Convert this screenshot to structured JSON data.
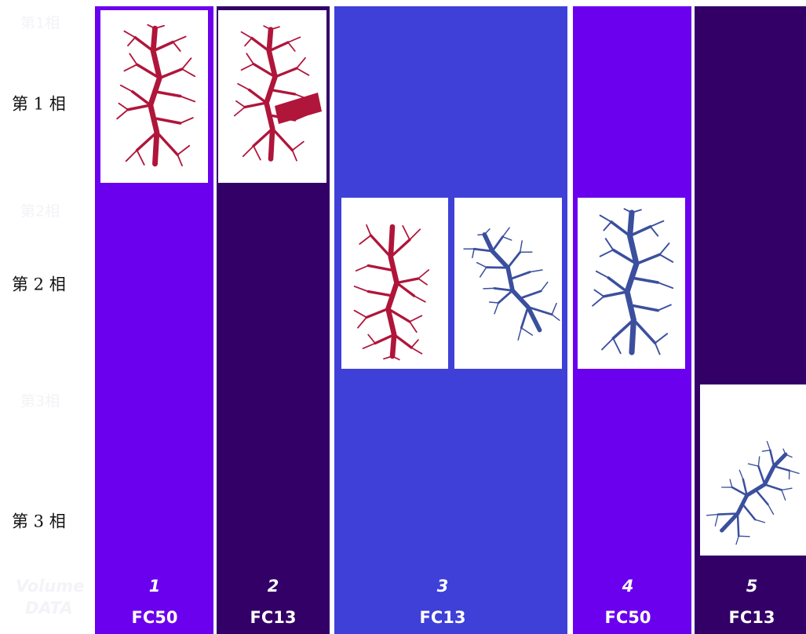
{
  "row_labels": [
    "第 1 相",
    "第 2 相",
    "第 3 相"
  ],
  "ghost_labels": [
    "第1相",
    "第2相",
    "第3相",
    "Volume",
    "DATA"
  ],
  "columns": [
    {
      "number": 1,
      "name": "FC50"
    },
    {
      "number": 2,
      "name": "FC13"
    },
    {
      "number": 3,
      "name": "FC13"
    },
    {
      "number": 4,
      "name": "FC50"
    },
    {
      "number": 5,
      "name": "FC13"
    }
  ]
}
